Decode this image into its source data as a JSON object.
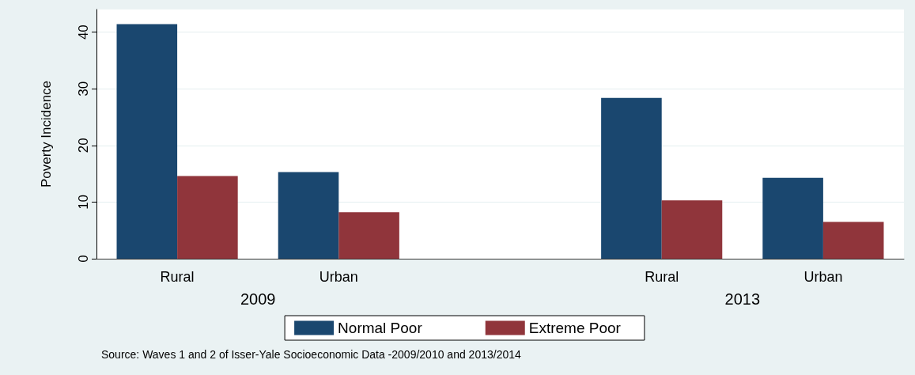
{
  "chart_data": {
    "type": "bar",
    "ylabel": "Poverty Incidence",
    "categories": [
      "Rural",
      "Urban",
      null,
      "Rural",
      "Urban"
    ],
    "series": [
      {
        "name": "Normal Poor",
        "color": "#1a476f",
        "values": [
          41.4,
          15.3,
          null,
          28.4,
          14.3
        ]
      },
      {
        "name": "Extreme Poor",
        "color": "#90353b",
        "values": [
          14.6,
          8.2,
          null,
          10.3,
          6.5
        ]
      }
    ],
    "ylim": [
      0,
      44
    ],
    "yticks": [
      0,
      10,
      20,
      30,
      40
    ],
    "grid": "y",
    "legend": "bottom",
    "annotations": [
      "2009",
      "2013",
      "Source: Waves 1 and 2 of Isser-Yale Socioeconomic Data -2009/2010 and 2013/2014"
    ]
  }
}
